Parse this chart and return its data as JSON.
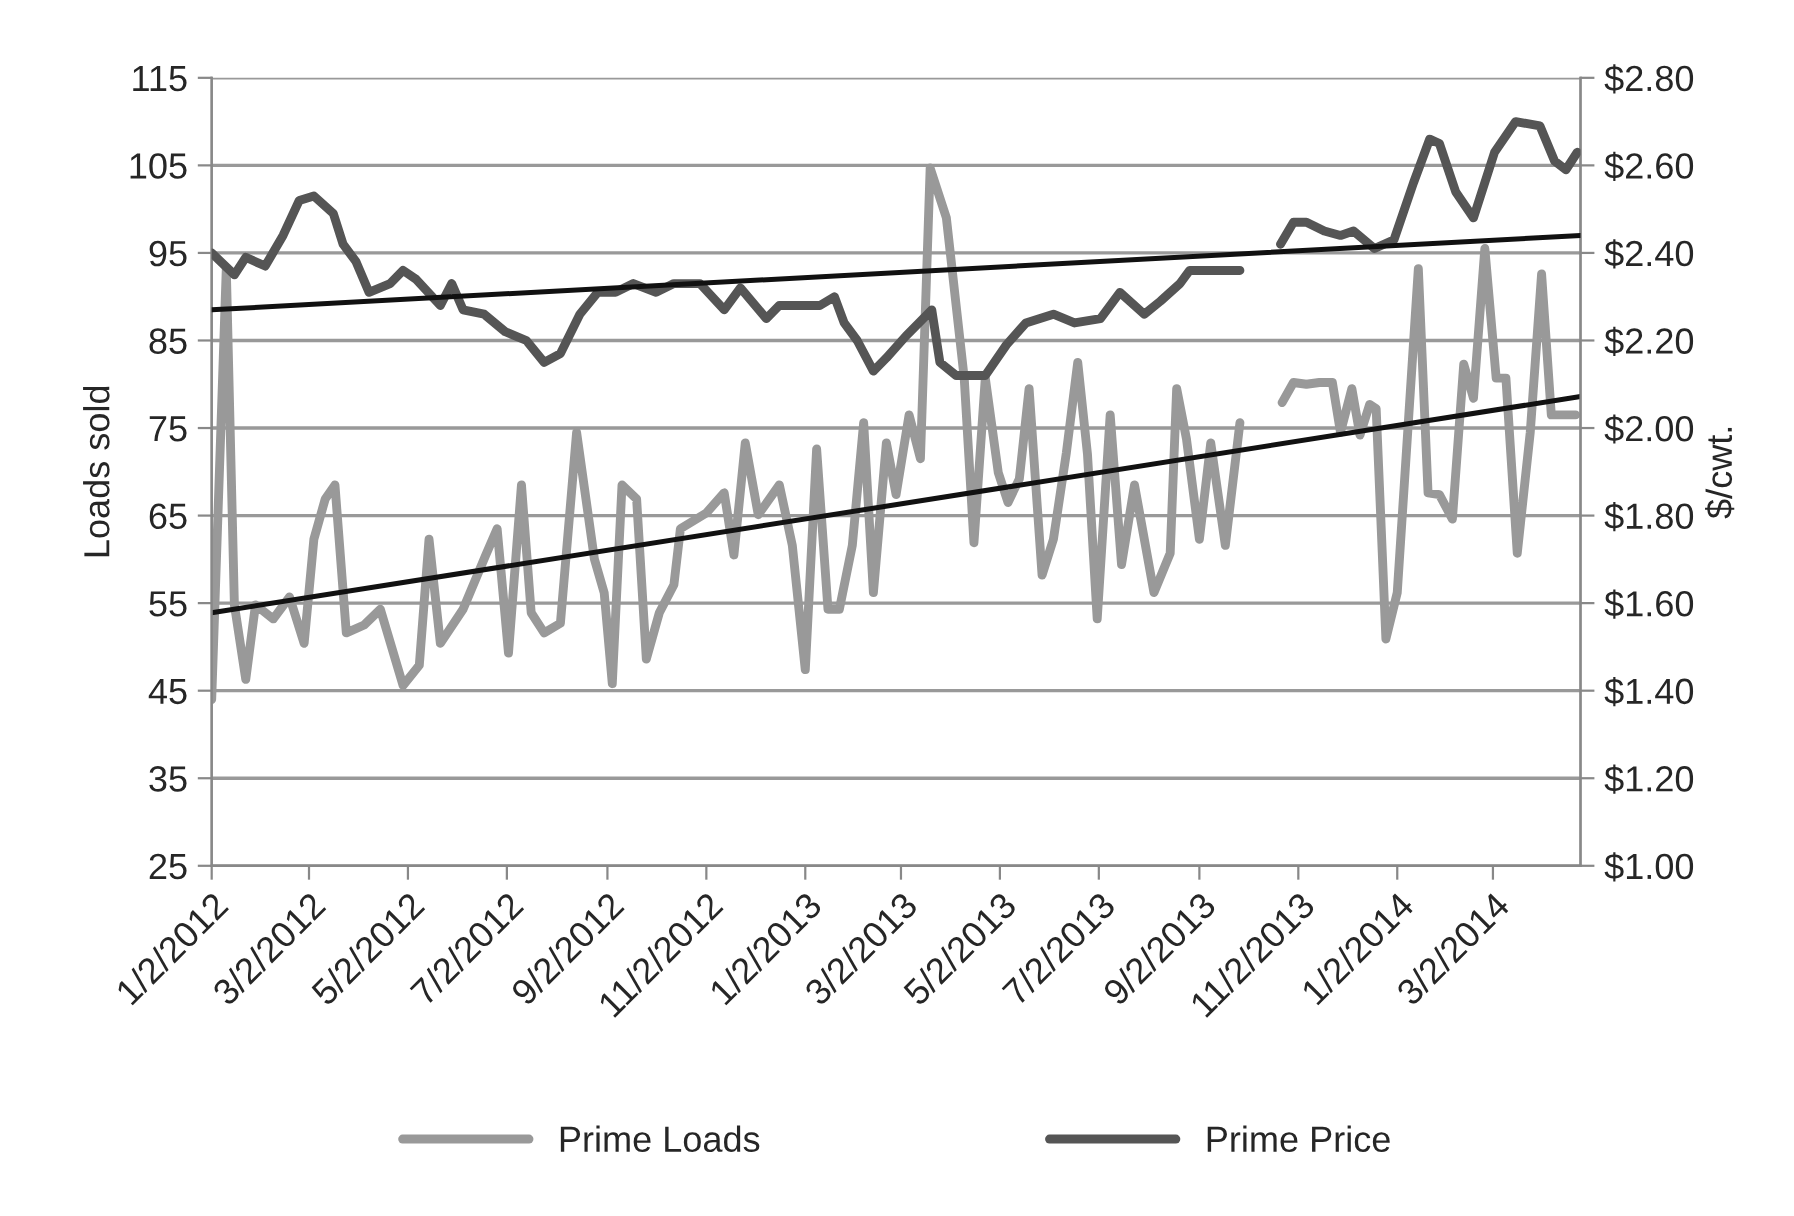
{
  "chart_data": {
    "type": "line",
    "ylabel": "Loads sold",
    "y2label": "$/cwt.",
    "xlim": [
      "2012-01-02",
      "2014-04-25"
    ],
    "xticks": [
      {
        "value": "2012-01-02",
        "label": "1/2/2012"
      },
      {
        "value": "2012-03-02",
        "label": "3/2/2012"
      },
      {
        "value": "2012-05-02",
        "label": "5/2/2012"
      },
      {
        "value": "2012-07-02",
        "label": "7/2/2012"
      },
      {
        "value": "2012-09-02",
        "label": "9/2/2012"
      },
      {
        "value": "2012-11-02",
        "label": "11/2/2012"
      },
      {
        "value": "2013-01-02",
        "label": "1/2/2013"
      },
      {
        "value": "2013-03-02",
        "label": "3/2/2013"
      },
      {
        "value": "2013-05-02",
        "label": "5/2/2013"
      },
      {
        "value": "2013-07-02",
        "label": "7/2/2013"
      },
      {
        "value": "2013-09-02",
        "label": "9/2/2013"
      },
      {
        "value": "2013-11-02",
        "label": "11/2/2013"
      },
      {
        "value": "2014-01-02",
        "label": "1/2/2014"
      },
      {
        "value": "2014-03-02",
        "label": "3/2/2014"
      }
    ],
    "ylim": [
      25,
      115
    ],
    "yticks": [
      25,
      35,
      45,
      55,
      65,
      75,
      85,
      95,
      105,
      115
    ],
    "y2lim": [
      1.0,
      2.8
    ],
    "y2ticks": [
      {
        "value": 1.0,
        "label": "$1.00"
      },
      {
        "value": 1.2,
        "label": "$1.20"
      },
      {
        "value": 1.4,
        "label": "$1.40"
      },
      {
        "value": 1.6,
        "label": "$1.60"
      },
      {
        "value": 1.8,
        "label": "$1.80"
      },
      {
        "value": 2.0,
        "label": "$2.00"
      },
      {
        "value": 2.2,
        "label": "$2.20"
      },
      {
        "value": 2.4,
        "label": "$2.40"
      },
      {
        "value": 2.6,
        "label": "$2.60"
      },
      {
        "value": 2.8,
        "label": "$2.80"
      }
    ],
    "grid": "y",
    "legend": "bottom",
    "marker": "none",
    "line_style": "solid",
    "series": [
      {
        "name": "Prime Loads",
        "color": "#999999",
        "x": [
          "2012-01-02",
          "2012-01-11",
          "2012-01-16",
          "2012-01-23",
          "2012-01-29",
          "2012-02-09",
          "2012-02-19",
          "2012-02-28",
          "2012-03-05",
          "2012-03-12",
          "2012-03-18",
          "2012-03-25",
          "2012-04-05",
          "2012-04-15",
          "2012-04-29",
          "2012-05-09",
          "2012-05-15",
          "2012-05-22",
          "2012-06-05",
          "2012-06-19",
          "2012-06-26",
          "2012-07-03",
          "2012-07-11",
          "2012-07-17",
          "2012-07-25",
          "2012-08-04",
          "2012-08-14",
          "2012-08-25",
          "2012-08-31",
          "2012-09-05",
          "2012-09-11",
          "2012-09-20",
          "2012-09-26",
          "2012-10-04",
          "2012-10-13",
          "2012-10-17",
          "2012-11-02",
          "2012-11-13",
          "2012-11-19",
          "2012-11-26",
          "2012-12-04",
          "2012-12-17",
          "2012-12-25",
          "2013-01-02",
          "2013-01-09",
          "2013-01-16",
          "2013-01-23",
          "2013-01-31",
          "2013-02-07",
          "2013-02-13",
          "2013-02-21",
          "2013-02-27",
          "2013-03-07",
          "2013-03-14",
          "2013-03-20",
          "2013-03-30",
          "2013-04-10",
          "2013-04-16",
          "2013-04-23",
          "2013-05-01",
          "2013-05-07",
          "2013-05-14",
          "2013-05-20",
          "2013-05-28",
          "2013-06-04",
          "2013-06-12",
          "2013-06-19",
          "2013-06-25",
          "2013-07-01",
          "2013-07-09",
          "2013-07-16",
          "2013-07-24",
          "2013-08-05",
          "2013-08-15",
          "2013-08-19",
          "2013-08-25",
          "2013-09-02",
          "2013-09-09",
          "2013-09-18",
          "2013-09-27",
          "2013-10-15",
          "2013-10-23",
          "2013-10-30",
          "2013-11-07",
          "2013-11-15",
          "2013-11-23",
          "2013-11-28",
          "2013-12-05",
          "2013-12-10",
          "2013-12-16",
          "2013-12-20",
          "2013-12-26",
          "2014-01-02",
          "2014-01-15",
          "2014-01-21",
          "2014-01-28",
          "2014-02-05",
          "2014-02-12",
          "2014-02-18",
          "2014-02-25",
          "2014-03-04",
          "2014-03-10",
          "2014-03-17",
          "2014-03-25",
          "2014-04-01",
          "2014-04-07",
          "2014-04-15",
          "2014-04-22"
        ],
        "values": [
          44.0,
          93.2,
          54.8,
          46.3,
          54.8,
          53.2,
          55.7,
          50.4,
          62.3,
          66.9,
          68.5,
          51.6,
          52.5,
          54.3,
          45.6,
          47.9,
          62.3,
          50.4,
          54.3,
          60.5,
          63.5,
          49.3,
          68.5,
          53.9,
          51.6,
          52.7,
          74.5,
          60.0,
          56.2,
          45.8,
          68.5,
          66.9,
          48.6,
          53.9,
          57.1,
          63.5,
          65.3,
          67.6,
          60.5,
          73.3,
          65.1,
          68.5,
          61.6,
          47.4,
          72.6,
          54.3,
          54.3,
          61.6,
          75.6,
          56.2,
          73.3,
          67.4,
          76.5,
          71.5,
          104.7,
          99.0,
          80.7,
          61.9,
          80.7,
          69.9,
          66.5,
          69.2,
          79.5,
          58.2,
          62.3,
          72.2,
          82.5,
          72.0,
          53.2,
          76.5,
          59.4,
          68.5,
          56.2,
          60.7,
          79.5,
          73.8,
          62.3,
          73.3,
          61.6,
          75.6,
          null,
          77.9,
          80.2,
          80.0,
          80.2,
          80.2,
          74.5,
          79.5,
          74.2,
          77.7,
          77.2,
          50.9,
          56.2,
          93.2,
          67.6,
          67.4,
          64.6,
          82.3,
          78.4,
          95.5,
          80.7,
          80.7,
          60.7,
          74.5,
          92.6,
          76.5,
          76.5,
          76.5
        ]
      },
      {
        "name": "Prime Price",
        "color": "#555555",
        "axis": "y2",
        "x": [
          "2012-01-02",
          "2012-01-16",
          "2012-01-23",
          "2012-02-04",
          "2012-02-15",
          "2012-02-25",
          "2012-03-05",
          "2012-03-17",
          "2012-03-23",
          "2012-03-31",
          "2012-04-08",
          "2012-04-21",
          "2012-04-29",
          "2012-05-07",
          "2012-05-22",
          "2012-05-29",
          "2012-06-05",
          "2012-06-18",
          "2012-07-01",
          "2012-07-14",
          "2012-07-25",
          "2012-08-04",
          "2012-08-16",
          "2012-08-27",
          "2012-09-07",
          "2012-09-18",
          "2012-10-02",
          "2012-10-13",
          "2012-10-29",
          "2012-11-13",
          "2012-11-23",
          "2012-12-09",
          "2012-12-17",
          "2013-01-11",
          "2013-01-20",
          "2013-01-26",
          "2013-02-03",
          "2013-02-13",
          "2013-02-21",
          "2013-03-05",
          "2013-03-21",
          "2013-03-26",
          "2013-04-05",
          "2013-04-23",
          "2013-05-06",
          "2013-05-18",
          "2013-06-04",
          "2013-06-17",
          "2013-07-03",
          "2013-07-15",
          "2013-07-30",
          "2013-08-09",
          "2013-08-21",
          "2013-08-27",
          "2013-09-05",
          "2013-09-18",
          "2013-09-27",
          "2013-10-15",
          "2013-10-22",
          "2013-10-30",
          "2013-11-07",
          "2013-11-18",
          "2013-11-28",
          "2013-12-06",
          "2013-12-19",
          "2013-12-31",
          "2014-01-12",
          "2014-01-22",
          "2014-01-28",
          "2014-02-07",
          "2014-02-18",
          "2014-03-03",
          "2014-03-16",
          "2014-03-31",
          "2014-04-09",
          "2014-04-16",
          "2014-04-23"
        ],
        "values": [
          2.4,
          2.35,
          2.39,
          2.37,
          2.44,
          2.52,
          2.53,
          2.49,
          2.42,
          2.38,
          2.31,
          2.33,
          2.36,
          2.34,
          2.28,
          2.33,
          2.27,
          2.26,
          2.22,
          2.2,
          2.15,
          2.17,
          2.26,
          2.31,
          2.31,
          2.33,
          2.31,
          2.33,
          2.33,
          2.27,
          2.32,
          2.25,
          2.28,
          2.28,
          2.3,
          2.24,
          2.2,
          2.13,
          2.16,
          2.21,
          2.27,
          2.15,
          2.12,
          2.12,
          2.19,
          2.24,
          2.26,
          2.24,
          2.25,
          2.31,
          2.26,
          2.29,
          2.33,
          2.36,
          2.36,
          2.36,
          2.36,
          null,
          2.42,
          2.47,
          2.47,
          2.45,
          2.44,
          2.45,
          2.41,
          2.43,
          2.56,
          2.66,
          2.65,
          2.54,
          2.48,
          2.63,
          2.7,
          2.69,
          2.61,
          2.59,
          2.63
        ]
      },
      {
        "color": "#111111",
        "x": [
          "2012-01-02",
          "2014-04-25"
        ],
        "values": [
          53.9,
          78.6
        ]
      },
      {
        "color": "#111111",
        "axis": "y2",
        "x": [
          "2012-01-02",
          "2014-04-25"
        ],
        "values": [
          2.27,
          2.44
        ]
      }
    ]
  }
}
